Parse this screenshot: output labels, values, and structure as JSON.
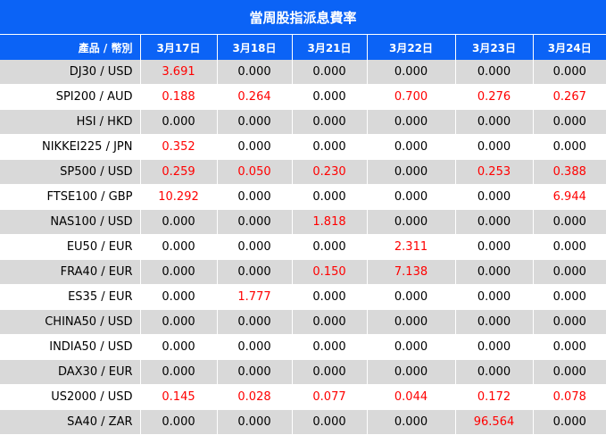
{
  "title": "當周股指派息費率",
  "header": {
    "product_label": "產品 / 幣別",
    "dates": [
      "3月17日",
      "3月18日",
      "3月21日",
      "3月22日",
      "3月23日",
      "3月24日"
    ]
  },
  "rows": [
    {
      "product": "DJ30 / USD",
      "values": [
        "3.691",
        "0.000",
        "0.000",
        "0.000",
        "0.000",
        "0.000"
      ]
    },
    {
      "product": "SPI200 / AUD",
      "values": [
        "0.188",
        "0.264",
        "0.000",
        "0.700",
        "0.276",
        "0.267"
      ]
    },
    {
      "product": "HSI / HKD",
      "values": [
        "0.000",
        "0.000",
        "0.000",
        "0.000",
        "0.000",
        "0.000"
      ]
    },
    {
      "product": "NIKKEI225 / JPN",
      "values": [
        "0.352",
        "0.000",
        "0.000",
        "0.000",
        "0.000",
        "0.000"
      ]
    },
    {
      "product": "SP500 / USD",
      "values": [
        "0.259",
        "0.050",
        "0.230",
        "0.000",
        "0.253",
        "0.388"
      ]
    },
    {
      "product": "FTSE100 / GBP",
      "values": [
        "10.292",
        "0.000",
        "0.000",
        "0.000",
        "0.000",
        "6.944"
      ]
    },
    {
      "product": "NAS100 / USD",
      "values": [
        "0.000",
        "0.000",
        "1.818",
        "0.000",
        "0.000",
        "0.000"
      ]
    },
    {
      "product": "EU50 / EUR",
      "values": [
        "0.000",
        "0.000",
        "0.000",
        "2.311",
        "0.000",
        "0.000"
      ]
    },
    {
      "product": "FRA40 / EUR",
      "values": [
        "0.000",
        "0.000",
        "0.150",
        "7.138",
        "0.000",
        "0.000"
      ]
    },
    {
      "product": "ES35 / EUR",
      "values": [
        "0.000",
        "1.777",
        "0.000",
        "0.000",
        "0.000",
        "0.000"
      ]
    },
    {
      "product": "CHINA50 / USD",
      "values": [
        "0.000",
        "0.000",
        "0.000",
        "0.000",
        "0.000",
        "0.000"
      ]
    },
    {
      "product": "INDIA50 / USD",
      "values": [
        "0.000",
        "0.000",
        "0.000",
        "0.000",
        "0.000",
        "0.000"
      ]
    },
    {
      "product": "DAX30 / EUR",
      "values": [
        "0.000",
        "0.000",
        "0.000",
        "0.000",
        "0.000",
        "0.000"
      ]
    },
    {
      "product": "US2000 / USD",
      "values": [
        "0.145",
        "0.028",
        "0.077",
        "0.044",
        "0.172",
        "0.078"
      ]
    },
    {
      "product": "SA40 / ZAR",
      "values": [
        "0.000",
        "0.000",
        "0.000",
        "0.000",
        "96.564",
        "0.000"
      ]
    }
  ],
  "colors": {
    "header_bg": "#0b63f6",
    "header_text": "#ffffff",
    "row_alt_bg": "#d9d9d9",
    "positive_value": "#ff0000",
    "zero_value": "#000000"
  }
}
